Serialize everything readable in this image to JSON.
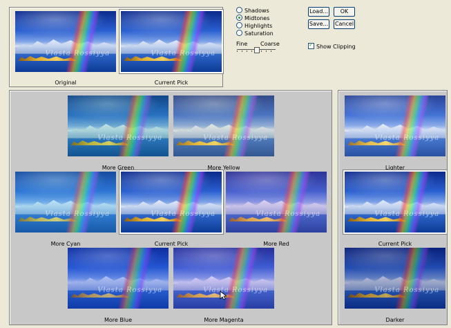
{
  "top_thumbs": [
    {
      "label": "Original"
    },
    {
      "label": "Current Pick"
    }
  ],
  "tone_options": [
    {
      "label": "Shadows",
      "selected": false
    },
    {
      "label": "Midtones",
      "selected": true
    },
    {
      "label": "Highlights",
      "selected": false
    },
    {
      "label": "Saturation",
      "selected": false
    }
  ],
  "slider": {
    "fine_label": "Fine",
    "coarse_label": "Coarse"
  },
  "buttons": {
    "load": "Load...",
    "ok": "OK",
    "save": "Save...",
    "cancel": "Cancel"
  },
  "show_clipping": {
    "label": "Show Clipping",
    "checked": true
  },
  "hue_grid": {
    "more_green": "More Green",
    "more_yellow": "More Yellow",
    "more_cyan": "More Cyan",
    "current_pick": "Current Pick",
    "more_red": "More Red",
    "more_blue": "More Blue",
    "more_magenta": "More Magenta"
  },
  "brightness": {
    "lighter": "Lighter",
    "current_pick": "Current Pick",
    "darker": "Darker"
  },
  "watermark_text": "Vlasta Rossiyya",
  "colors": {
    "panel_gray": "#c8c8c8",
    "dialog_bg": "#ece9d8",
    "selected_border": "#ffffff"
  }
}
